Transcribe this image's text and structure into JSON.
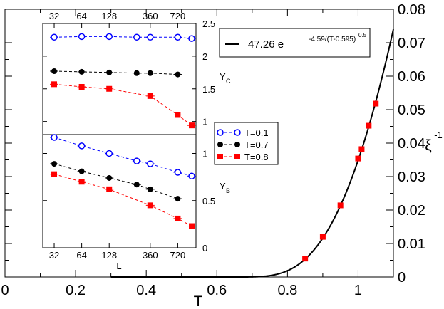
{
  "chart_data": {
    "main": {
      "type": "line+scatter",
      "xlabel": "T",
      "ylabel": "ξ",
      "ylabel_superscript": "-1",
      "xlim": [
        0,
        1.1
      ],
      "ylim": [
        0,
        0.08
      ],
      "xticks": [
        0,
        0.2,
        0.4,
        0.6,
        0.8,
        1
      ],
      "xtick_labels": [
        "0",
        "0.2",
        "0.4",
        "0.6",
        "0.8",
        "1"
      ],
      "yticks": [
        0,
        0.01,
        0.02,
        0.03,
        0.04,
        0.05,
        0.06,
        0.07,
        0.08
      ],
      "ytick_labels": [
        "0",
        "0.01",
        "0.02",
        "0.03",
        "0.04",
        "0.05",
        "0.06",
        "0.07",
        "0.08"
      ],
      "fit": {
        "label_prefix": "47.26  e",
        "label_exponent": "-4.59/(T-0.595)",
        "label_power": "0.5",
        "A": 47.26,
        "B": 4.59,
        "T0": 0.595,
        "color": "#000000"
      },
      "points": {
        "color": "#ff0000",
        "x": [
          0.85,
          0.9,
          0.95,
          1.0,
          1.01,
          1.03,
          1.05
        ],
        "y": [
          0.0055,
          0.012,
          0.0214,
          0.0354,
          0.0382,
          0.0452,
          0.0518
        ],
        "xerr": [
          0.005,
          0.005,
          0.005,
          0.005,
          0.005,
          0.005,
          0.005
        ]
      }
    },
    "inset": {
      "xlabel": "L",
      "x": [
        32,
        64,
        128,
        256,
        360,
        720,
        1024
      ],
      "xticks": [
        32,
        64,
        128,
        360,
        720
      ],
      "xtick_labels": [
        "32",
        "64",
        "128",
        "360",
        "720"
      ],
      "upper": {
        "ylabel": "Y",
        "ylabel_sub": "C",
        "ylim": [
          0.8,
          2.5
        ],
        "yticks": [
          1.0,
          1.5,
          2.0,
          2.5
        ],
        "ytick_labels": [
          "1",
          "1.5",
          "2",
          "2.5"
        ],
        "series": [
          {
            "name": "T=0.1",
            "color": "#0000ff",
            "marker": "open-circle",
            "values": [
              2.29,
              2.3,
              2.3,
              2.29,
              2.29,
              2.29,
              2.27
            ]
          },
          {
            "name": "T=0.7",
            "color": "#000000",
            "marker": "filled-circle",
            "values": [
              1.77,
              1.76,
              1.75,
              1.74,
              1.74,
              1.72,
              null
            ]
          },
          {
            "name": "T=0.8",
            "color": "#ff0000",
            "marker": "filled-square",
            "values": [
              1.57,
              1.53,
              1.5,
              null,
              1.39,
              1.1,
              0.94
            ]
          }
        ]
      },
      "lower": {
        "ylabel": "Y",
        "ylabel_sub": "B",
        "ylim": [
          0,
          1.2
        ],
        "yticks": [
          0,
          0.5,
          1.0
        ],
        "ytick_labels": [
          "0",
          "0.5",
          "1"
        ],
        "series": [
          {
            "name": "T=0.1",
            "color": "#0000ff",
            "marker": "open-circle",
            "values": [
              1.17,
              1.08,
              1.0,
              0.92,
              0.89,
              0.8,
              0.76
            ]
          },
          {
            "name": "T=0.7",
            "color": "#000000",
            "marker": "filled-circle",
            "values": [
              0.89,
              0.81,
              0.74,
              0.67,
              0.62,
              0.52,
              null
            ]
          },
          {
            "name": "T=0.8",
            "color": "#ff0000",
            "marker": "filled-square",
            "values": [
              0.78,
              0.7,
              0.62,
              null,
              0.45,
              0.31,
              0.23
            ]
          }
        ]
      }
    },
    "legend": {
      "entries": [
        {
          "name": "T=0.1",
          "color": "#0000ff",
          "marker": "open-circle"
        },
        {
          "name": "T=0.7",
          "color": "#000000",
          "marker": "filled-circle"
        },
        {
          "name": "T=0.8",
          "color": "#ff0000",
          "marker": "filled-square"
        }
      ]
    }
  }
}
